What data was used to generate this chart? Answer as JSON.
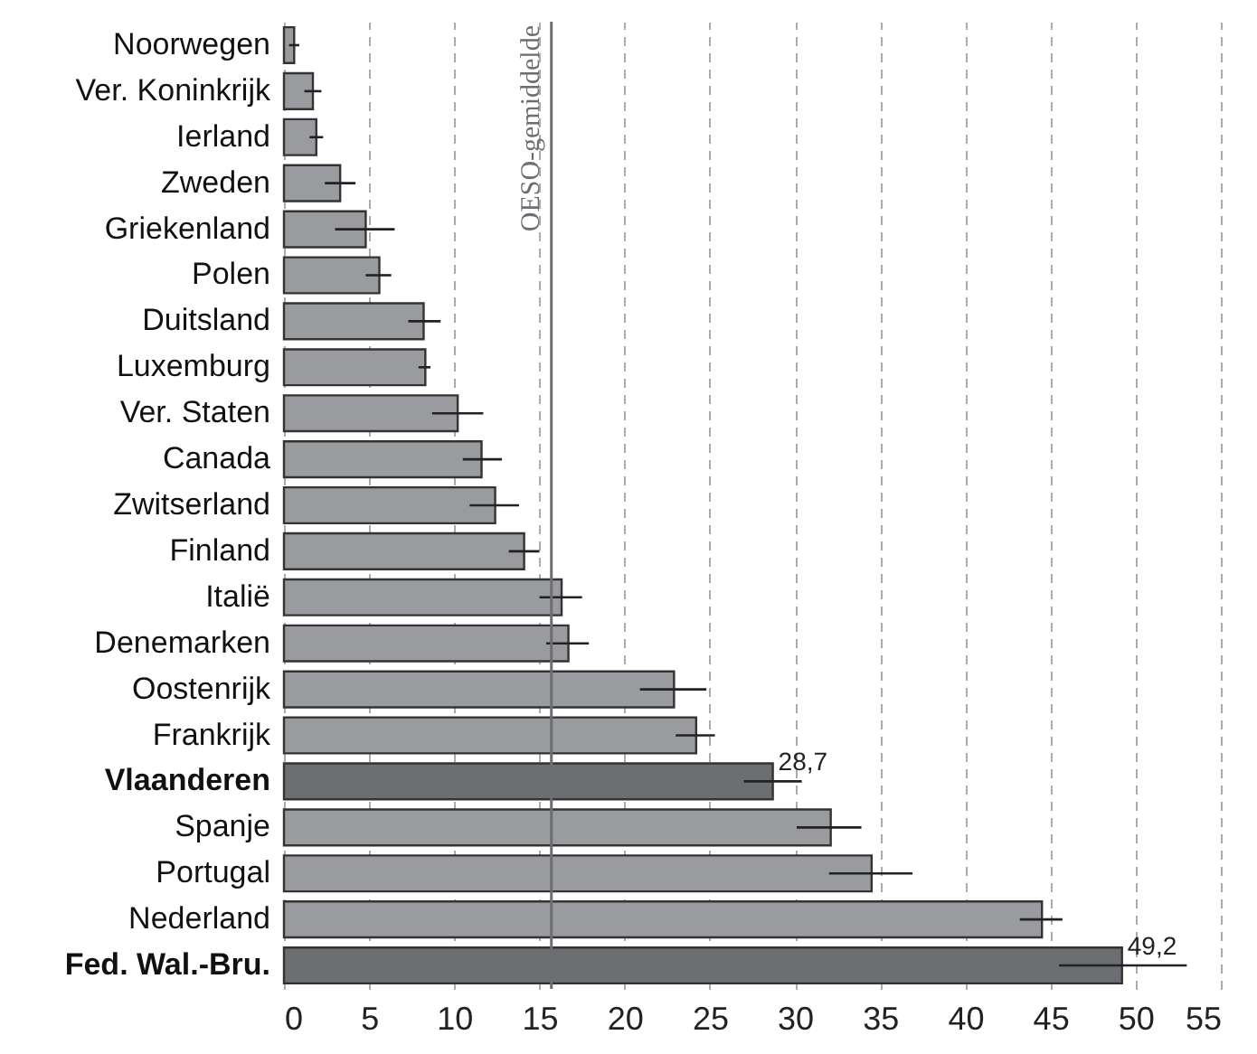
{
  "chart_data": {
    "type": "bar",
    "orientation": "horizontal",
    "categories": [
      "Noorwegen",
      "Ver. Koninkrijk",
      "Ierland",
      "Zweden",
      "Griekenland",
      "Polen",
      "Duitsland",
      "Luxemburg",
      "Ver. Staten",
      "Canada",
      "Zwitserland",
      "Finland",
      "Italië",
      "Denemarken",
      "Oostenrijk",
      "Frankrijk",
      "Vlaanderen",
      "Spanje",
      "Portugal",
      "Nederland",
      "Fed. Wal.-Bru."
    ],
    "values": [
      0.6,
      1.7,
      1.9,
      3.3,
      4.8,
      5.6,
      8.2,
      8.3,
      10.2,
      11.6,
      12.4,
      14.1,
      16.3,
      16.7,
      22.9,
      24.2,
      28.7,
      32.1,
      34.5,
      44.5,
      49.2
    ],
    "errors": [
      [
        0.3,
        0.9
      ],
      [
        1.2,
        2.2
      ],
      [
        1.5,
        2.3
      ],
      [
        2.4,
        4.2
      ],
      [
        3.0,
        6.5
      ],
      [
        4.8,
        6.3
      ],
      [
        7.3,
        9.2
      ],
      [
        7.9,
        8.6
      ],
      [
        8.7,
        11.7
      ],
      [
        10.5,
        12.8
      ],
      [
        10.9,
        13.8
      ],
      [
        13.2,
        15.0
      ],
      [
        15.0,
        17.5
      ],
      [
        15.4,
        17.9
      ],
      [
        20.9,
        24.8
      ],
      [
        23.0,
        25.3
      ],
      [
        27.0,
        30.4
      ],
      [
        30.1,
        33.9
      ],
      [
        32.0,
        36.9
      ],
      [
        43.2,
        45.7
      ],
      [
        45.5,
        53.0
      ]
    ],
    "colors": [
      "#9a9b9f",
      "#9a9b9f",
      "#9a9b9f",
      "#9a9b9f",
      "#9a9b9f",
      "#9a9b9f",
      "#9a9b9f",
      "#9a9b9f",
      "#9a9b9f",
      "#9a9b9f",
      "#9a9b9f",
      "#9a9b9f",
      "#9a9b9f",
      "#9a9b9f",
      "#9a9b9f",
      "#9a9b9f",
      "#6d6e72",
      "#9a9b9f",
      "#9a9b9f",
      "#9a9b9f",
      "#6d6e72"
    ],
    "value_labels": [
      null,
      null,
      null,
      null,
      null,
      null,
      null,
      null,
      null,
      null,
      null,
      null,
      null,
      null,
      null,
      null,
      "28,7",
      null,
      null,
      null,
      "49,2"
    ],
    "xlim": [
      0,
      55
    ],
    "xticks": [
      0,
      5,
      10,
      15,
      20,
      25,
      30,
      35,
      40,
      45,
      50,
      55
    ],
    "grid": "x",
    "ref_lines": [
      {
        "axis": "x",
        "value": 15.7,
        "label": "OESO-gemiddelde",
        "color": "#6d6e72"
      }
    ]
  }
}
